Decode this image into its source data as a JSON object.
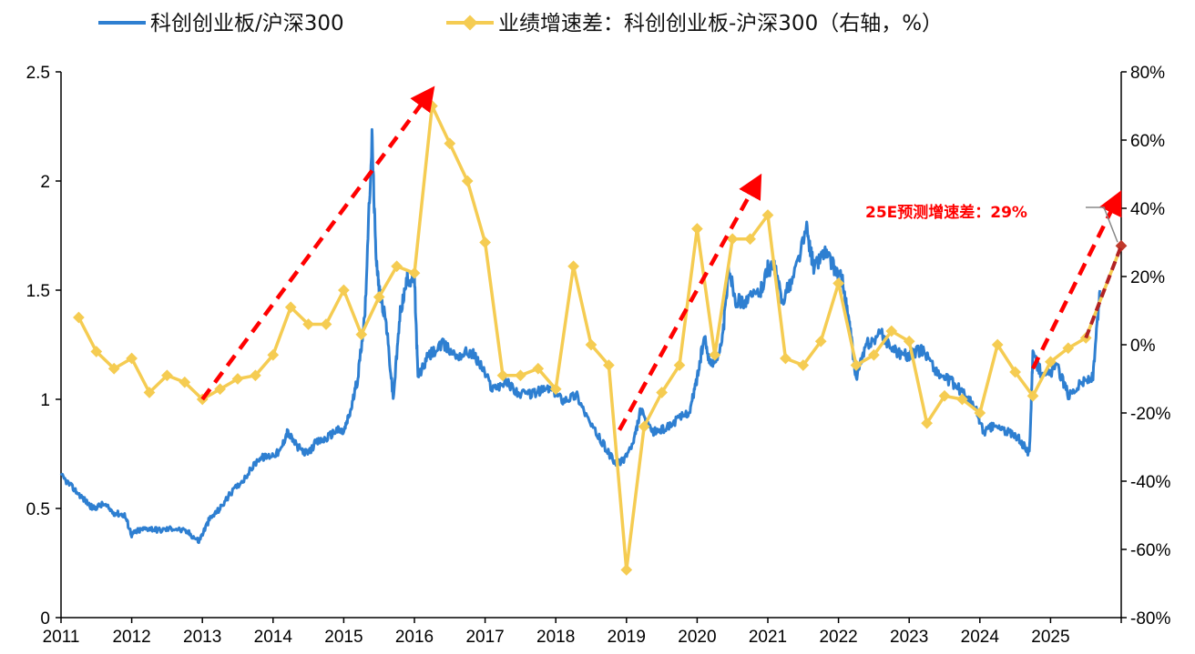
{
  "chart_data": {
    "type": "line",
    "title": "",
    "xlabel": "",
    "ylabel": "",
    "x_ticks": [
      "2011",
      "2012",
      "2013",
      "2014",
      "2015",
      "2016",
      "2017",
      "2018",
      "2019",
      "2020",
      "2021",
      "2022",
      "2023",
      "2024",
      "2025"
    ],
    "y_left_ticks": [
      "0",
      "0.5",
      "1",
      "1.5",
      "2",
      "2.5"
    ],
    "y_right_ticks": [
      "-80%",
      "-60%",
      "-40%",
      "-20%",
      "0%",
      "20%",
      "40%",
      "60%",
      "80%"
    ],
    "ylim_left": [
      0,
      2.5
    ],
    "ylim_right": [
      -80,
      80
    ],
    "xlim": [
      2011.0,
      2026.0
    ],
    "legend_position": "top",
    "grid": false,
    "series": [
      {
        "name": "科创创业板/沪深300",
        "axis": "left",
        "color": "#2e7fd1",
        "points": [
          [
            2011.0,
            0.65
          ],
          [
            2011.15,
            0.6
          ],
          [
            2011.3,
            0.55
          ],
          [
            2011.45,
            0.5
          ],
          [
            2011.6,
            0.52
          ],
          [
            2011.75,
            0.48
          ],
          [
            2011.9,
            0.47
          ],
          [
            2012.0,
            0.38
          ],
          [
            2012.1,
            0.4
          ],
          [
            2012.25,
            0.41
          ],
          [
            2012.4,
            0.4
          ],
          [
            2012.6,
            0.41
          ],
          [
            2012.8,
            0.39
          ],
          [
            2012.95,
            0.35
          ],
          [
            2013.1,
            0.45
          ],
          [
            2013.25,
            0.5
          ],
          [
            2013.4,
            0.57
          ],
          [
            2013.6,
            0.64
          ],
          [
            2013.8,
            0.73
          ],
          [
            2013.95,
            0.74
          ],
          [
            2014.1,
            0.76
          ],
          [
            2014.2,
            0.85
          ],
          [
            2014.35,
            0.78
          ],
          [
            2014.5,
            0.75
          ],
          [
            2014.6,
            0.8
          ],
          [
            2014.75,
            0.82
          ],
          [
            2014.9,
            0.86
          ],
          [
            2015.0,
            0.85
          ],
          [
            2015.1,
            0.95
          ],
          [
            2015.2,
            1.1
          ],
          [
            2015.3,
            1.4
          ],
          [
            2015.4,
            2.2
          ],
          [
            2015.45,
            1.7
          ],
          [
            2015.5,
            1.5
          ],
          [
            2015.6,
            1.35
          ],
          [
            2015.7,
            1.0
          ],
          [
            2015.8,
            1.4
          ],
          [
            2015.9,
            1.55
          ],
          [
            2016.0,
            1.55
          ],
          [
            2016.05,
            1.1
          ],
          [
            2016.2,
            1.2
          ],
          [
            2016.4,
            1.25
          ],
          [
            2016.6,
            1.2
          ],
          [
            2016.8,
            1.22
          ],
          [
            2016.95,
            1.15
          ],
          [
            2017.1,
            1.05
          ],
          [
            2017.3,
            1.08
          ],
          [
            2017.5,
            1.02
          ],
          [
            2017.7,
            1.03
          ],
          [
            2017.9,
            1.05
          ],
          [
            2018.1,
            1.0
          ],
          [
            2018.3,
            1.02
          ],
          [
            2018.5,
            0.88
          ],
          [
            2018.7,
            0.78
          ],
          [
            2018.85,
            0.7
          ],
          [
            2018.95,
            0.72
          ],
          [
            2019.1,
            0.8
          ],
          [
            2019.2,
            0.95
          ],
          [
            2019.35,
            0.85
          ],
          [
            2019.5,
            0.86
          ],
          [
            2019.7,
            0.9
          ],
          [
            2019.9,
            0.95
          ],
          [
            2020.0,
            1.1
          ],
          [
            2020.1,
            1.28
          ],
          [
            2020.2,
            1.15
          ],
          [
            2020.35,
            1.25
          ],
          [
            2020.45,
            1.6
          ],
          [
            2020.55,
            1.45
          ],
          [
            2020.7,
            1.45
          ],
          [
            2020.9,
            1.5
          ],
          [
            2021.0,
            1.6
          ],
          [
            2021.1,
            1.6
          ],
          [
            2021.2,
            1.45
          ],
          [
            2021.35,
            1.55
          ],
          [
            2021.55,
            1.78
          ],
          [
            2021.65,
            1.6
          ],
          [
            2021.8,
            1.68
          ],
          [
            2021.95,
            1.6
          ],
          [
            2022.05,
            1.55
          ],
          [
            2022.15,
            1.35
          ],
          [
            2022.25,
            1.1
          ],
          [
            2022.4,
            1.25
          ],
          [
            2022.6,
            1.3
          ],
          [
            2022.8,
            1.22
          ],
          [
            2023.0,
            1.2
          ],
          [
            2023.2,
            1.23
          ],
          [
            2023.4,
            1.12
          ],
          [
            2023.6,
            1.08
          ],
          [
            2023.8,
            1.02
          ],
          [
            2023.95,
            0.95
          ],
          [
            2024.05,
            0.85
          ],
          [
            2024.2,
            0.88
          ],
          [
            2024.4,
            0.85
          ],
          [
            2024.55,
            0.82
          ],
          [
            2024.7,
            0.75
          ],
          [
            2024.75,
            1.2
          ],
          [
            2024.9,
            1.1
          ],
          [
            2025.1,
            1.15
          ],
          [
            2025.25,
            1.02
          ],
          [
            2025.45,
            1.08
          ],
          [
            2025.6,
            1.1
          ],
          [
            2025.7,
            1.5
          ]
        ]
      },
      {
        "name": "业绩增速差：科创创业板-沪深300（右轴，%）",
        "axis": "right",
        "color": "#f5cc52",
        "points": [
          [
            2011.25,
            8
          ],
          [
            2011.5,
            -2
          ],
          [
            2011.75,
            -7
          ],
          [
            2012.0,
            -4
          ],
          [
            2012.25,
            -14
          ],
          [
            2012.5,
            -9
          ],
          [
            2012.75,
            -11
          ],
          [
            2013.0,
            -16
          ],
          [
            2013.25,
            -13
          ],
          [
            2013.5,
            -10
          ],
          [
            2013.75,
            -9
          ],
          [
            2014.0,
            -3
          ],
          [
            2014.25,
            11
          ],
          [
            2014.5,
            6
          ],
          [
            2014.75,
            6
          ],
          [
            2015.0,
            16
          ],
          [
            2015.25,
            3
          ],
          [
            2015.5,
            14
          ],
          [
            2015.75,
            23
          ],
          [
            2016.0,
            21
          ],
          [
            2016.25,
            70
          ],
          [
            2016.5,
            59
          ],
          [
            2016.75,
            48
          ],
          [
            2017.0,
            30
          ],
          [
            2017.25,
            -9
          ],
          [
            2017.5,
            -9
          ],
          [
            2017.75,
            -7
          ],
          [
            2018.0,
            -13
          ],
          [
            2018.25,
            23
          ],
          [
            2018.5,
            0
          ],
          [
            2018.75,
            -6
          ],
          [
            2019.0,
            -66
          ],
          [
            2019.25,
            -24
          ],
          [
            2019.5,
            -14
          ],
          [
            2019.75,
            -6
          ],
          [
            2020.0,
            34
          ],
          [
            2020.25,
            -3
          ],
          [
            2020.5,
            31
          ],
          [
            2020.75,
            31
          ],
          [
            2021.0,
            38
          ],
          [
            2021.25,
            -4
          ],
          [
            2021.5,
            -6
          ],
          [
            2021.75,
            1
          ],
          [
            2022.0,
            18
          ],
          [
            2022.25,
            -6
          ],
          [
            2022.5,
            -3
          ],
          [
            2022.75,
            4
          ],
          [
            2023.0,
            1
          ],
          [
            2023.25,
            -23
          ],
          [
            2023.5,
            -15
          ],
          [
            2023.75,
            -16
          ],
          [
            2024.0,
            -20
          ],
          [
            2024.25,
            0
          ],
          [
            2024.5,
            -8
          ],
          [
            2024.75,
            -15
          ],
          [
            2025.0,
            -5
          ],
          [
            2025.25,
            -1
          ],
          [
            2025.5,
            2
          ],
          [
            2026.0,
            29
          ]
        ]
      }
    ],
    "trend_arrows": [
      {
        "from": [
          2013.0,
          -16
        ],
        "to": [
          2016.15,
          72
        ],
        "axis": "right"
      },
      {
        "from": [
          2018.9,
          -25
        ],
        "to": [
          2020.8,
          46
        ],
        "axis": "right"
      },
      {
        "from": [
          2024.75,
          -7
        ],
        "to": [
          2025.9,
          41
        ],
        "axis": "right"
      }
    ],
    "annotation": {
      "text": "25E预测增速差：29%",
      "target": [
        2026.0,
        29
      ],
      "color": "#ff0000"
    }
  }
}
